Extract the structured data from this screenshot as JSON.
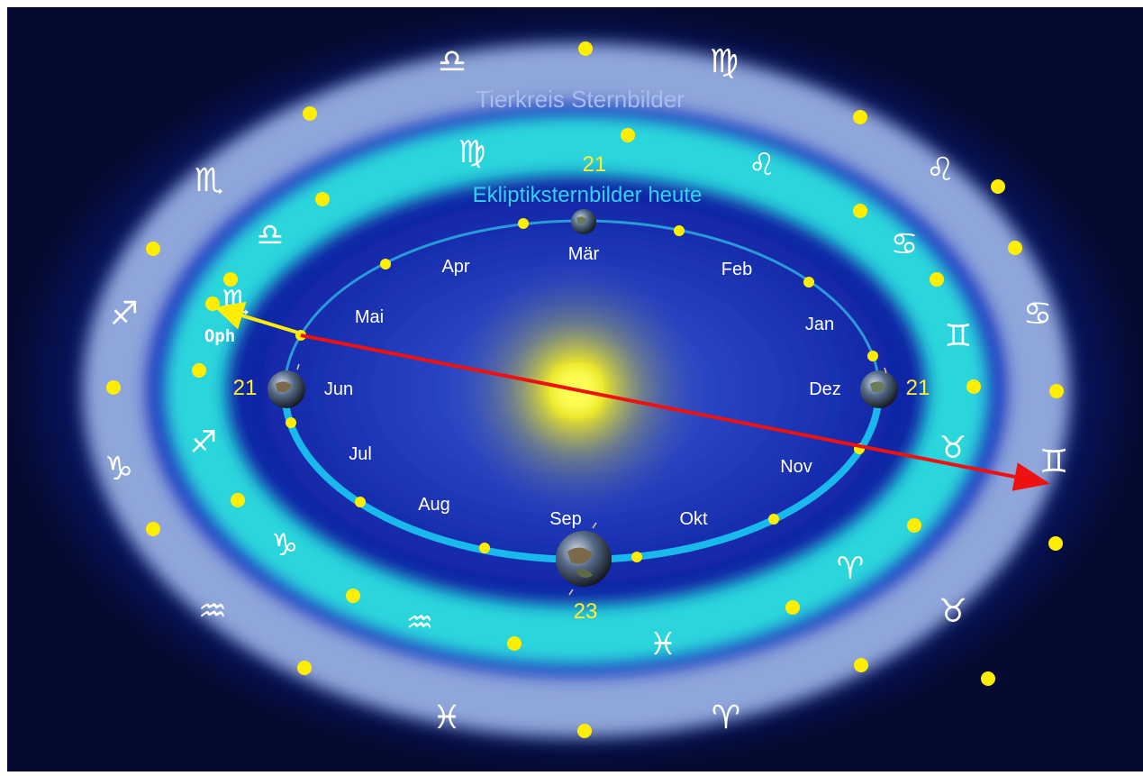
{
  "labels": {
    "outer_ring_title": "Tierkreis Sternbilder",
    "inner_ring_title": "Ekliptiksternbilder heute",
    "ophiuchus": "Oph"
  },
  "months": {
    "mar": "Mär",
    "feb": "Feb",
    "jan": "Jan",
    "dez": "Dez",
    "nov": "Nov",
    "okt": "Okt",
    "sep": "Sep",
    "aug": "Aug",
    "jul": "Jul",
    "jun": "Jun",
    "mai": "Mai",
    "apr": "Apr"
  },
  "dates": {
    "march_equinox": "21",
    "december_solstice": "21",
    "september_equinox": "23",
    "june_solstice": "21"
  },
  "outer_zodiac_signs": {
    "libra": "♎",
    "virgo": "♍",
    "leo": "♌",
    "cancer": "♋",
    "gemini": "♊",
    "taurus": "♉",
    "aries": "♈",
    "pisces": "♓",
    "aquarius": "♒",
    "capricorn": "♑",
    "sagittarius": "♐",
    "scorpio": "♏"
  },
  "inner_zodiac_signs": {
    "virgo": "♍",
    "leo": "♌",
    "cancer": "♋",
    "gemini": "♊",
    "taurus": "♉",
    "aries": "♈",
    "pisces": "♓",
    "aquarius": "♒",
    "capricorn": "♑",
    "sagittarius": "♐",
    "scorpio": "♏",
    "libra": "♎"
  },
  "colors": {
    "background": "#0a1e86",
    "outer_ring": "#8fa6da",
    "inner_ring": "#2bd6dc",
    "orbit": "#19b9ee",
    "sun": "#ffff22",
    "dot": "#ffee00",
    "precession_arrow": "#ee1111",
    "ophiuchus_arrow": "#ffee00"
  }
}
